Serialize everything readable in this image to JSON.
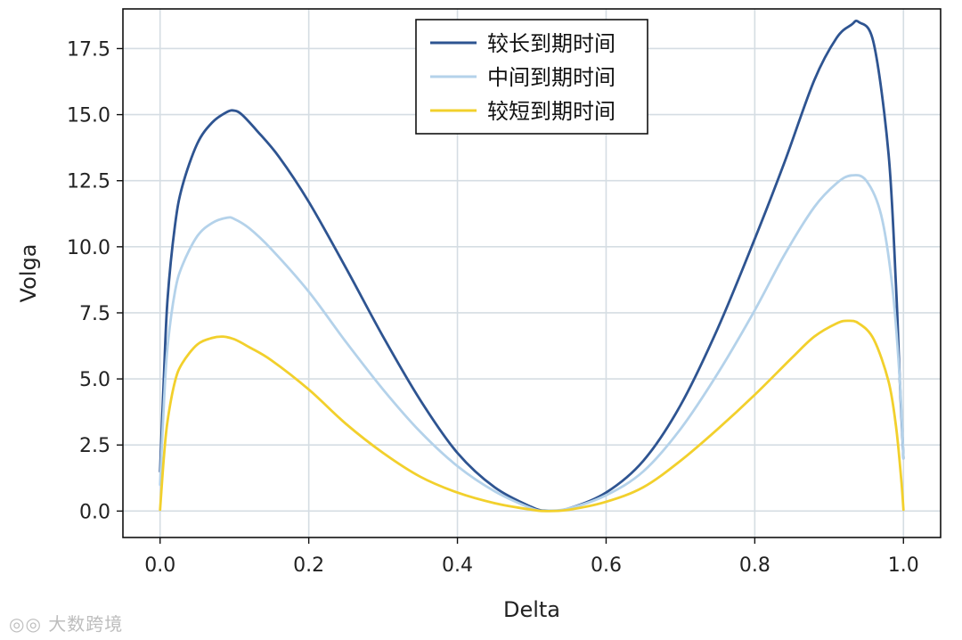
{
  "chart_data": {
    "type": "line",
    "title": "",
    "xlabel": "Delta",
    "ylabel": "Volga",
    "xlim": [
      -0.05,
      1.05
    ],
    "ylim": [
      -1.0,
      19.0
    ],
    "x_ticks": [
      0.0,
      0.2,
      0.4,
      0.6,
      0.8,
      1.0
    ],
    "x_tick_labels": [
      "0.0",
      "0.2",
      "0.4",
      "0.6",
      "0.8",
      "1.0"
    ],
    "y_ticks": [
      0.0,
      2.5,
      5.0,
      7.5,
      10.0,
      12.5,
      15.0,
      17.5
    ],
    "y_tick_labels": [
      "0.0",
      "2.5",
      "5.0",
      "7.5",
      "10.0",
      "12.5",
      "15.0",
      "17.5"
    ],
    "grid": true,
    "legend_position": "top-center",
    "series": [
      {
        "name": "较长到期时间",
        "color": "#2e5491",
        "x": [
          0.0,
          0.005,
          0.01,
          0.02,
          0.03,
          0.05,
          0.07,
          0.09,
          0.1,
          0.11,
          0.13,
          0.16,
          0.2,
          0.25,
          0.3,
          0.35,
          0.4,
          0.45,
          0.5,
          0.52,
          0.55,
          0.6,
          0.65,
          0.7,
          0.75,
          0.8,
          0.84,
          0.88,
          0.91,
          0.93,
          0.94,
          0.96,
          0.98,
          0.99,
          0.995,
          1.0
        ],
        "y": [
          1.5,
          5.0,
          8.0,
          10.8,
          12.3,
          13.9,
          14.7,
          15.1,
          15.15,
          15.0,
          14.4,
          13.4,
          11.7,
          9.2,
          6.6,
          4.2,
          2.2,
          0.9,
          0.15,
          0.02,
          0.1,
          0.7,
          1.9,
          4.0,
          6.9,
          10.3,
          13.2,
          16.3,
          17.9,
          18.4,
          18.5,
          17.7,
          13.5,
          8.5,
          5.0,
          2.0
        ]
      },
      {
        "name": "中间到期时间",
        "color": "#b4d2ea",
        "x": [
          0.0,
          0.005,
          0.01,
          0.02,
          0.03,
          0.05,
          0.07,
          0.09,
          0.1,
          0.12,
          0.15,
          0.2,
          0.25,
          0.3,
          0.35,
          0.4,
          0.45,
          0.5,
          0.52,
          0.55,
          0.6,
          0.65,
          0.7,
          0.75,
          0.8,
          0.84,
          0.88,
          0.91,
          0.93,
          0.95,
          0.97,
          0.985,
          0.995,
          1.0
        ],
        "y": [
          1.0,
          4.0,
          6.2,
          8.3,
          9.3,
          10.4,
          10.9,
          11.1,
          11.05,
          10.7,
          9.9,
          8.3,
          6.4,
          4.6,
          3.0,
          1.7,
          0.75,
          0.1,
          0.02,
          0.1,
          0.6,
          1.5,
          3.1,
          5.2,
          7.6,
          9.7,
          11.5,
          12.4,
          12.7,
          12.5,
          11.2,
          8.5,
          5.0,
          2.0
        ]
      },
      {
        "name": "较短到期时间",
        "color": "#f2d02c",
        "x": [
          0.0,
          0.005,
          0.01,
          0.02,
          0.03,
          0.05,
          0.07,
          0.085,
          0.1,
          0.12,
          0.15,
          0.2,
          0.25,
          0.3,
          0.35,
          0.4,
          0.45,
          0.5,
          0.52,
          0.55,
          0.6,
          0.65,
          0.7,
          0.75,
          0.8,
          0.85,
          0.88,
          0.91,
          0.925,
          0.94,
          0.96,
          0.98,
          0.99,
          0.997,
          1.0
        ],
        "y": [
          0.05,
          2.0,
          3.4,
          4.9,
          5.6,
          6.3,
          6.55,
          6.6,
          6.5,
          6.2,
          5.7,
          4.6,
          3.3,
          2.2,
          1.3,
          0.7,
          0.3,
          0.05,
          0.0,
          0.05,
          0.35,
          0.9,
          1.9,
          3.1,
          4.4,
          5.8,
          6.6,
          7.1,
          7.2,
          7.1,
          6.5,
          4.9,
          3.2,
          1.2,
          0.05
        ]
      }
    ]
  }
}
